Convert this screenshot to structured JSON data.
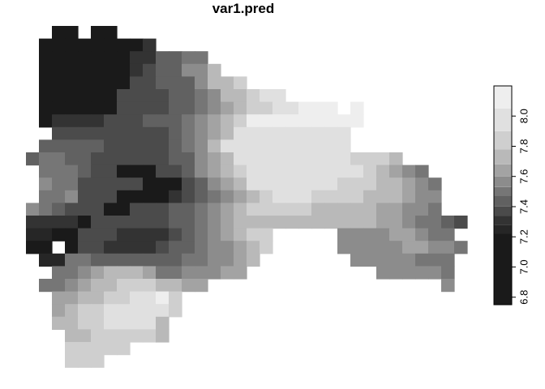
{
  "chart_data": {
    "type": "heatmap",
    "title": "var1.pred",
    "xlabel": "",
    "ylabel": "",
    "grid": false,
    "legend": {
      "placement": "right",
      "breaks": [
        6.75,
        7.22,
        7.28,
        7.34,
        7.4,
        7.47,
        7.53,
        7.6,
        7.68,
        7.78,
        7.9,
        8.05,
        8.2
      ],
      "colors": [
        "#1a1a1a",
        "#262626",
        "#333333",
        "#4b4b4b",
        "#616161",
        "#767676",
        "#8c8c8c",
        "#a3a3a3",
        "#b9b9b9",
        "#cfcfcf",
        "#e0e0e0",
        "#eeeeee"
      ],
      "ticks": [
        6.8,
        7.0,
        7.2,
        7.4,
        7.6,
        7.8,
        8.0
      ],
      "tick_labels": [
        "6.8",
        "7.0",
        "7.2",
        "7.4",
        "7.6",
        "7.8",
        "8.0"
      ]
    },
    "grid_x0": 0,
    "grid_y0": 32,
    "grid_cell": 15.6,
    "legend_chars": "0123456789ab",
    "legend_values": [
      6.95,
      7.25,
      7.31,
      7.37,
      7.44,
      7.5,
      7.57,
      7.64,
      7.73,
      7.84,
      7.97,
      8.12
    ],
    "cells": [
      "....00.00...........................",
      "...0000002..........................",
      "...00000024455......................",
      "...000000234466.....................",
      "...0000003344468899.................",
      "...000033334456889aa................",
      "...00033334456789aab.......b........",
      "...022223344567899bbbbbbbbbb........",
      "....3333333456789aaaaaaaa...........",
      "...44444333345678aaaaaaaaaa.........",
      "..4544330333346789aaaaaa9aa98.......",
      "...55543000034678aaaaaaaaaaa8765.....",
      "...6553333333356789aaaaaaa999865....",
      "...556333000234567899999999888766...",
      "...6543300034456789aa99999888776655.",
      "..222203333344567888888888888776543.",
      "..1100333222234567899....6666776553.",
      "..00.033222234456689.....66666776653",
      "...11544444445566789.......666665555",
      "....5567888756 677................665",
      "...556788999887......................",
      "....7788999aab9......................",
      "....7899aaaaa9.......................",
      "....8899aaaa.........................",
      ".....8899999.........................",
      ".....99999...........................",
      "..........................................",
      ".....999.............................."
    ]
  }
}
